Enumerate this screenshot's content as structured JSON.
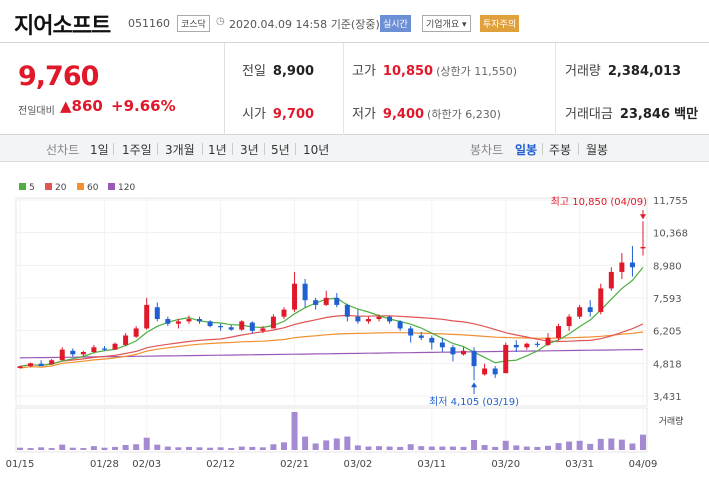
{
  "header": {
    "name": "지어소프트",
    "code": "051160",
    "market": "코스닥",
    "datetime": "2020.04.09 14:58",
    "basis": "기준(장중)",
    "realtime": "실시간",
    "company_info": "기업개요",
    "warning": "투자주의"
  },
  "price": {
    "current": "9,760",
    "change_label": "전일대비",
    "change": "860",
    "pct": "+9.66%"
  },
  "stats": {
    "prev_label": "전일",
    "prev": "8,900",
    "open_label": "시가",
    "open": "9,700",
    "high_label": "고가",
    "high": "10,850",
    "upper_limit": "(상한가 11,550)",
    "low_label": "저가",
    "low": "9,400",
    "lower_limit": "(하한가 6,230)",
    "volume_label": "거래량",
    "volume": "2,384,013",
    "amount_label": "거래대금",
    "amount": "23,846",
    "amount_unit": "백만"
  },
  "periods": {
    "label": "선차트",
    "items": [
      "1일",
      "1주일",
      "3개월",
      "1년",
      "3년",
      "5년",
      "10년"
    ]
  },
  "candle_tabs": {
    "label": "봉차트",
    "items": [
      "일봉",
      "주봉",
      "월봉"
    ],
    "selected": "일봉"
  },
  "colors": {
    "up": "#e0192a",
    "down": "#1f5fcf",
    "ma5": "#4caf3f",
    "ma20": "#e05454",
    "ma60": "#f09030",
    "ma120": "#9b59b6",
    "volume": "#a48ad1"
  },
  "chart_data": {
    "type": "candlestick",
    "legend": [
      "5",
      "20",
      "60",
      "120"
    ],
    "y_ticks": [
      "11,755",
      "10,368",
      "8,980",
      "7,593",
      "6,205",
      "4,818",
      "3,431"
    ],
    "ylim": [
      3431,
      11755
    ],
    "x_ticks": [
      {
        "label": "01/15",
        "index": 0
      },
      {
        "label": "01/28",
        "index": 8
      },
      {
        "label": "02/03",
        "index": 12
      },
      {
        "label": "02/12",
        "index": 19
      },
      {
        "label": "02/21",
        "index": 26
      },
      {
        "label": "03/02",
        "index": 32
      },
      {
        "label": "03/11",
        "index": 39
      },
      {
        "label": "03/20",
        "index": 46
      },
      {
        "label": "03/31",
        "index": 53
      },
      {
        "label": "04/09",
        "index": 59
      }
    ],
    "candles": [
      [
        4620,
        4720,
        4600,
        4690
      ],
      [
        4700,
        4850,
        4650,
        4820
      ],
      [
        4800,
        4950,
        4750,
        4700
      ],
      [
        4780,
        5000,
        4750,
        4950
      ],
      [
        4950,
        5500,
        4950,
        5400
      ],
      [
        5350,
        5450,
        5100,
        5200
      ],
      [
        5200,
        5350,
        5100,
        5300
      ],
      [
        5300,
        5600,
        5250,
        5500
      ],
      [
        5450,
        5550,
        5350,
        5400
      ],
      [
        5400,
        5700,
        5400,
        5650
      ],
      [
        5600,
        6100,
        5550,
        6000
      ],
      [
        5950,
        6400,
        5900,
        6300
      ],
      [
        6300,
        7600,
        6250,
        7300
      ],
      [
        7200,
        7400,
        6600,
        6700
      ],
      [
        6700,
        6800,
        6400,
        6500
      ],
      [
        6500,
        6700,
        6300,
        6600
      ],
      [
        6600,
        6850,
        6500,
        6700
      ],
      [
        6700,
        6800,
        6500,
        6600
      ],
      [
        6600,
        6650,
        6350,
        6400
      ],
      [
        6400,
        6500,
        6200,
        6350
      ],
      [
        6350,
        6450,
        6200,
        6250
      ],
      [
        6250,
        6650,
        6200,
        6600
      ],
      [
        6550,
        6600,
        6100,
        6200
      ],
      [
        6200,
        6400,
        6100,
        6300
      ],
      [
        6300,
        6900,
        6300,
        6800
      ],
      [
        6800,
        7200,
        6700,
        7100
      ],
      [
        7100,
        8700,
        7000,
        8200
      ],
      [
        8200,
        8400,
        7200,
        7500
      ],
      [
        7500,
        7600,
        7100,
        7300
      ],
      [
        7300,
        7900,
        7250,
        7600
      ],
      [
        7600,
        7800,
        7200,
        7300
      ],
      [
        7300,
        7350,
        6600,
        6800
      ],
      [
        6800,
        7100,
        6500,
        6600
      ],
      [
        6600,
        6800,
        6500,
        6700
      ],
      [
        6700,
        6900,
        6600,
        6800
      ],
      [
        6800,
        6850,
        6500,
        6600
      ],
      [
        6600,
        6650,
        6200,
        6300
      ],
      [
        6300,
        6400,
        5700,
        6000
      ],
      [
        6000,
        6150,
        5800,
        5900
      ],
      [
        5900,
        6000,
        5400,
        5700
      ],
      [
        5700,
        5900,
        5300,
        5500
      ],
      [
        5500,
        5600,
        4900,
        5200
      ],
      [
        5200,
        5500,
        5150,
        5350
      ],
      [
        5350,
        5500,
        4100,
        4700
      ],
      [
        4350,
        4800,
        4300,
        4600
      ],
      [
        4600,
        4700,
        4200,
        4350
      ],
      [
        4400,
        5700,
        4400,
        5600
      ],
      [
        5600,
        5800,
        5300,
        5500
      ],
      [
        5500,
        5700,
        5400,
        5650
      ],
      [
        5650,
        5750,
        5500,
        5600
      ],
      [
        5600,
        6100,
        5550,
        5900
      ],
      [
        5900,
        6500,
        5800,
        6400
      ],
      [
        6400,
        6900,
        6200,
        6800
      ],
      [
        6800,
        7300,
        6700,
        7200
      ],
      [
        7200,
        7500,
        6800,
        7000
      ],
      [
        7000,
        8200,
        6900,
        8000
      ],
      [
        8000,
        8900,
        7900,
        8700
      ],
      [
        8700,
        9500,
        8400,
        9100
      ],
      [
        9100,
        9800,
        8500,
        8900
      ],
      [
        9700,
        10850,
        9400,
        9760
      ]
    ],
    "volumes": [
      6,
      5,
      7,
      5,
      14,
      6,
      5,
      10,
      6,
      8,
      13,
      15,
      32,
      14,
      9,
      7,
      8,
      7,
      6,
      7,
      5,
      9,
      8,
      7,
      15,
      20,
      99,
      35,
      17,
      25,
      30,
      35,
      12,
      9,
      10,
      9,
      8,
      15,
      10,
      9,
      9,
      9,
      8,
      26,
      13,
      8,
      24,
      12,
      9,
      8,
      11,
      18,
      22,
      24,
      16,
      29,
      30,
      27,
      17,
      40
    ],
    "volume_label": "거래량",
    "high_annotation": "최고 10,850 (04/09)",
    "low_annotation": "최저 4,105 (03/19)"
  }
}
